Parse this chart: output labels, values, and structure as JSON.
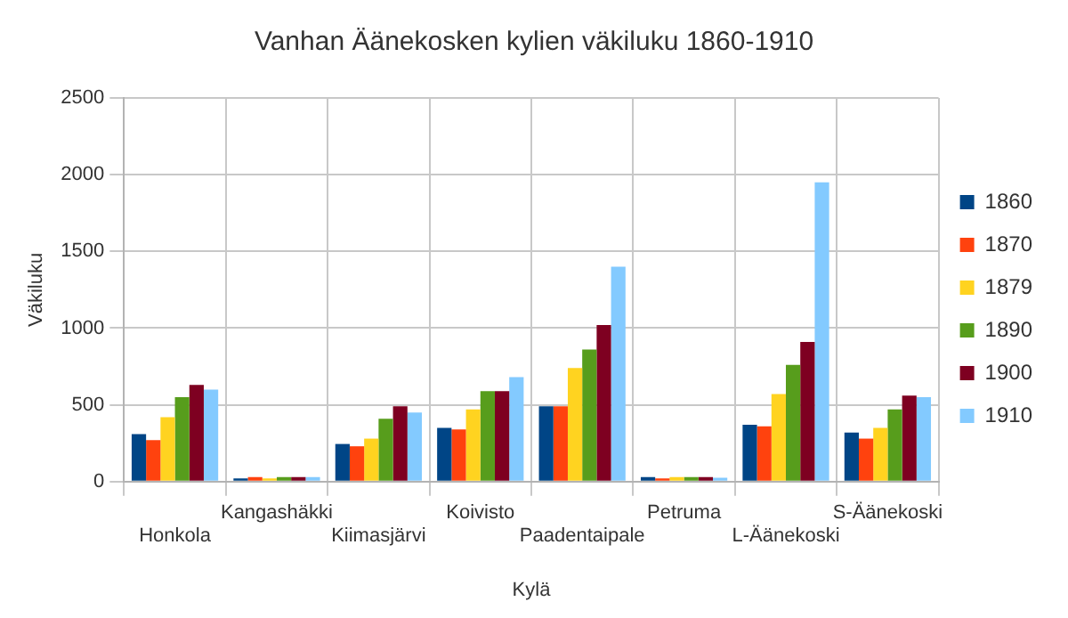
{
  "chart_data": {
    "type": "bar",
    "title": "Vanhan Äänekosken kylien väkiluku 1860-1910",
    "xlabel": "Kylä",
    "ylabel": "Väkiluku",
    "categories": [
      "Honkola",
      "Kangashäkki",
      "Kiimasjärvi",
      "Koivisto",
      "Paadentaipale",
      "Petruma",
      "L-Äänekoski",
      "S-Äänekoski"
    ],
    "series": [
      {
        "name": "1860",
        "color": "#004586",
        "values": [
          310,
          20,
          245,
          350,
          490,
          30,
          370,
          320
        ]
      },
      {
        "name": "1870",
        "color": "#ff420e",
        "values": [
          270,
          30,
          230,
          340,
          490,
          20,
          360,
          280
        ]
      },
      {
        "name": "1879",
        "color": "#ffd320",
        "values": [
          420,
          20,
          280,
          470,
          740,
          30,
          570,
          350
        ]
      },
      {
        "name": "1890",
        "color": "#579d1c",
        "values": [
          550,
          30,
          410,
          590,
          860,
          30,
          760,
          470
        ]
      },
      {
        "name": "1900",
        "color": "#7e0021",
        "values": [
          630,
          30,
          490,
          590,
          1020,
          30,
          910,
          560
        ]
      },
      {
        "name": "1910",
        "color": "#83caff",
        "values": [
          600,
          30,
          450,
          680,
          1400,
          25,
          1950,
          550
        ]
      }
    ],
    "ylim": [
      0,
      2500
    ],
    "yticks": [
      0,
      500,
      1000,
      1500,
      2000,
      2500
    ],
    "grid": true,
    "legend": "right"
  }
}
